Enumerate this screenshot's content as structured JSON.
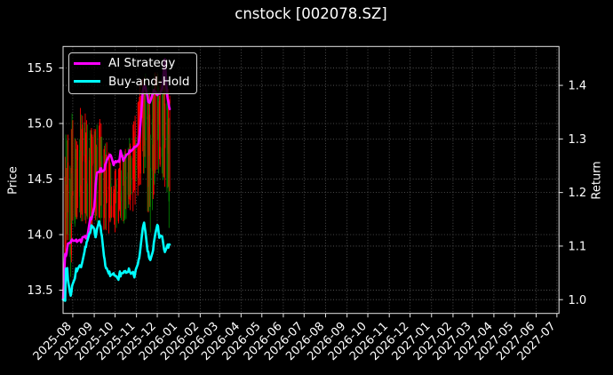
{
  "title": "cnstock [002078.SZ]",
  "colors": {
    "background": "#000000",
    "text": "#ffffff",
    "grid": "#9a9a9a",
    "spine": "#e6e6e6",
    "candle_up": "#ff0000",
    "candle_down": "#008000",
    "strategy": "#ff00ff",
    "buyhold": "#00ffff"
  },
  "legend": {
    "items": [
      {
        "label": "AI Strategy",
        "color": "#ff00ff"
      },
      {
        "label": "Buy-and-Hold",
        "color": "#00ffff"
      }
    ]
  },
  "axes": {
    "x": {
      "range": [
        "2025-07-18",
        "2027-07-04"
      ],
      "tick_labels": [
        "2025-08",
        "2025-09",
        "2025-10",
        "2025-11",
        "2025-12",
        "2026-01",
        "2026-02",
        "2026-03",
        "2026-04",
        "2026-05",
        "2026-06",
        "2026-07",
        "2026-08",
        "2026-09",
        "2026-10",
        "2026-11",
        "2026-12",
        "2027-01",
        "2027-02",
        "2027-03",
        "2027-04",
        "2027-05",
        "2027-06",
        "2027-07"
      ]
    },
    "y_left": {
      "label": "Price",
      "range": [
        13.291,
        15.693
      ],
      "ticks": [
        "13.5",
        "14.0",
        "14.5",
        "15.0",
        "15.5"
      ]
    },
    "y_right": {
      "label": "Return",
      "range": [
        0.9743,
        1.4726
      ],
      "ticks": [
        "1.0",
        "1.1",
        "1.2",
        "1.3",
        "1.4"
      ]
    },
    "grid": true
  },
  "chart_data": {
    "type": "candlestick+line",
    "title": "cnstock [002078.SZ]",
    "xlabel": "",
    "ylabel_left": "Price",
    "ylabel_right": "Return",
    "legend_position": "upper left",
    "grid": true,
    "dates": [
      "2025-07-18",
      "2025-07-21",
      "2025-07-22",
      "2025-07-23",
      "2025-07-24",
      "2025-07-25",
      "2025-07-28",
      "2025-07-29",
      "2025-07-30",
      "2025-07-31",
      "2025-08-01",
      "2025-08-04",
      "2025-08-05",
      "2025-08-06",
      "2025-08-07",
      "2025-08-08",
      "2025-08-11",
      "2025-08-12",
      "2025-08-13",
      "2025-08-14",
      "2025-08-15",
      "2025-08-18",
      "2025-08-19",
      "2025-08-20",
      "2025-08-21",
      "2025-08-22",
      "2025-08-25",
      "2025-08-26",
      "2025-08-27",
      "2025-08-28",
      "2025-08-29",
      "2025-09-01",
      "2025-09-02",
      "2025-09-03",
      "2025-09-04",
      "2025-09-05",
      "2025-09-08",
      "2025-09-09",
      "2025-09-10",
      "2025-09-11",
      "2025-09-12",
      "2025-09-15",
      "2025-09-16",
      "2025-09-17",
      "2025-09-18",
      "2025-09-19",
      "2025-09-22",
      "2025-09-23",
      "2025-09-24",
      "2025-09-25",
      "2025-09-26",
      "2025-09-29",
      "2025-09-30",
      "2025-10-01",
      "2025-10-02",
      "2025-10-03",
      "2025-10-06",
      "2025-10-07",
      "2025-10-08",
      "2025-10-09",
      "2025-10-10",
      "2025-10-13",
      "2025-10-14",
      "2025-10-15",
      "2025-10-16",
      "2025-10-17",
      "2025-10-20",
      "2025-10-21",
      "2025-10-22",
      "2025-10-23",
      "2025-10-24",
      "2025-10-27",
      "2025-10-28",
      "2025-10-29",
      "2025-10-30",
      "2025-10-31",
      "2025-11-03",
      "2025-11-04",
      "2025-11-05",
      "2025-11-06",
      "2025-11-07",
      "2025-11-10",
      "2025-11-11",
      "2025-11-12",
      "2025-11-13",
      "2025-11-14",
      "2025-11-17",
      "2025-11-18",
      "2025-11-19",
      "2025-11-20",
      "2025-11-21",
      "2025-11-24",
      "2025-11-25",
      "2025-11-26",
      "2025-11-27",
      "2025-11-28",
      "2025-12-01",
      "2025-12-02",
      "2025-12-03",
      "2025-12-04",
      "2025-12-05",
      "2025-12-08",
      "2025-12-09",
      "2025-12-10",
      "2025-12-11",
      "2025-12-12",
      "2025-12-15",
      "2025-12-16",
      "2025-12-17",
      "2025-12-18",
      "2025-12-19"
    ],
    "ohlc": {
      "open": [
        13.41,
        13.55,
        14.48,
        14.15,
        14.4,
        14.2,
        14.5,
        13.9,
        13.82,
        14.55,
        14.35,
        14.4,
        14.18,
        14.68,
        14.16,
        14.67,
        14.76,
        14.38,
        14.75,
        14.21,
        14.66,
        14.96,
        14.65,
        14.76,
        14.19,
        14.46,
        14.09,
        14.77,
        14.77,
        14.73,
        14.62,
        14.64,
        14.88,
        14.33,
        14.37,
        14.79,
        14.16,
        14.39,
        14.86,
        14.54,
        14.71,
        14.05,
        14.23,
        14.74,
        14.35,
        14.29,
        14.41,
        14.16,
        14.12,
        14.46,
        14.16,
        14.16,
        14.22,
        14.41,
        14.29,
        14.45,
        14.12,
        14.36,
        14.22,
        14.17,
        14.39,
        14.44,
        14.69,
        14.73,
        14.3,
        14.52,
        14.56,
        14.32,
        14.67,
        14.31,
        14.69,
        14.5,
        14.7,
        14.55,
        14.7,
        14.62,
        14.59,
        14.86,
        14.45,
        14.68,
        14.55,
        15.05,
        14.7,
        15.15,
        14.8,
        15.2,
        15.06,
        14.43,
        15.26,
        14.71,
        14.6,
        15.04,
        14.58,
        14.88,
        15.32,
        14.58,
        15.43,
        15.34,
        15.15,
        14.99,
        14.63,
        14.78,
        15.27,
        14.89,
        15.16,
        14.78,
        15.18,
        15.27,
        14.73,
        14.9,
        15.18
      ],
      "high": [
        13.6,
        14.7,
        14.9,
        14.6,
        14.85,
        14.9,
        14.62,
        14.1,
        14.95,
        15.09,
        15.03,
        14.87,
        14.86,
        14.77,
        14.84,
        14.81,
        14.86,
        15.14,
        15.08,
        14.95,
        15.07,
        15.01,
        15.09,
        14.92,
        15.03,
        14.99,
        14.78,
        14.94,
        14.91,
        14.96,
        14.9,
        14.95,
        14.93,
        14.95,
        14.81,
        14.99,
        14.98,
        15.04,
        14.88,
        15.0,
        14.88,
        14.77,
        14.8,
        14.82,
        14.72,
        14.83,
        14.74,
        14.7,
        14.65,
        14.64,
        14.43,
        14.44,
        14.41,
        14.58,
        14.59,
        14.5,
        14.59,
        14.6,
        14.69,
        14.68,
        14.58,
        14.72,
        14.72,
        14.75,
        14.77,
        14.73,
        14.78,
        14.77,
        14.87,
        14.82,
        14.71,
        14.99,
        15.02,
        14.85,
        15.07,
        14.88,
        15.19,
        15.2,
        15.24,
        15.35,
        15.25,
        15.4,
        15.3,
        15.35,
        15.42,
        15.45,
        15.35,
        15.24,
        15.33,
        15.28,
        14.9,
        15.36,
        15.3,
        15.28,
        15.45,
        15.46,
        15.45,
        15.45,
        15.32,
        15.25,
        15.39,
        15.26,
        15.37,
        15.44,
        15.58,
        15.4,
        15.28,
        15.3,
        15.31,
        15.05,
        15.25
      ],
      "low": [
        13.4,
        13.5,
        13.95,
        13.85,
        14.0,
        13.95,
        13.8,
        13.62,
        13.75,
        14.1,
        14.13,
        14.07,
        14.16,
        14.14,
        14.14,
        14.24,
        14.2,
        14.15,
        14.12,
        14.18,
        14.12,
        14.13,
        14.19,
        14.1,
        14.17,
        14.14,
        14.07,
        14.07,
        14.05,
        14.04,
        14.05,
        14.24,
        14.15,
        14.13,
        14.17,
        14.11,
        14.15,
        14.15,
        14.11,
        14.26,
        14.15,
        14.04,
        14.15,
        14.05,
        14.04,
        14.28,
        14.01,
        14.15,
        14.11,
        14.13,
        14.15,
        14.15,
        14.09,
        14.02,
        14.28,
        14.06,
        14.1,
        14.23,
        14.21,
        14.15,
        14.13,
        14.12,
        14.1,
        14.13,
        14.23,
        14.14,
        14.24,
        14.27,
        14.34,
        14.22,
        14.36,
        14.21,
        14.38,
        14.4,
        14.27,
        14.48,
        14.35,
        14.51,
        14.44,
        14.62,
        14.45,
        14.75,
        14.55,
        14.55,
        14.7,
        14.6,
        14.21,
        14.2,
        14.21,
        14.25,
        14.02,
        14.22,
        14.32,
        14.36,
        14.45,
        14.55,
        14.59,
        14.85,
        14.55,
        14.68,
        14.61,
        14.55,
        14.49,
        14.52,
        14.51,
        14.43,
        14.38,
        14.42,
        14.43,
        14.06,
        14.39
      ],
      "close": [
        13.52,
        14.52,
        14.2,
        14.45,
        14.15,
        14.65,
        13.95,
        13.78,
        14.6,
        14.35,
        14.39,
        14.1,
        14.59,
        14.4,
        14.59,
        14.8,
        14.34,
        14.7,
        14.45,
        14.44,
        14.99,
        14.71,
        14.72,
        14.9,
        14.48,
        14.16,
        14.67,
        14.7,
        14.26,
        14.94,
        14.88,
        14.9,
        14.38,
        14.39,
        14.8,
        14.45,
        14.4,
        15.01,
        14.61,
        14.66,
        14.55,
        14.27,
        14.63,
        14.24,
        14.6,
        14.4,
        14.43,
        14.33,
        14.34,
        14.26,
        14.26,
        14.37,
        14.4,
        14.57,
        14.47,
        14.43,
        14.39,
        14.49,
        14.31,
        14.34,
        14.3,
        14.7,
        14.68,
        14.15,
        14.48,
        14.5,
        14.36,
        14.75,
        14.36,
        14.8,
        14.45,
        14.69,
        14.93,
        14.7,
        15.02,
        14.58,
        14.89,
        15.15,
        14.63,
        14.95,
        15.1,
        15.28,
        15.2,
        14.7,
        15.25,
        14.85,
        15.04,
        15.21,
        14.97,
        15.08,
        14.25,
        14.57,
        14.81,
        15.24,
        14.48,
        15.41,
        15.43,
        15.15,
        14.86,
        15.2,
        14.79,
        14.7,
        14.93,
        15.21,
        14.81,
        15.18,
        15.12,
        14.76,
        15.04,
        14.3,
        15.22
      ]
    },
    "series": [
      {
        "name": "AI Strategy",
        "axis": "return",
        "values": [
          1.0,
          1.0855,
          1.0811,
          1.0858,
          1.0975,
          1.1046,
          1.1064,
          1.1068,
          1.1105,
          1.1124,
          1.11,
          1.11,
          1.1105,
          1.1121,
          1.1078,
          1.1092,
          1.1119,
          1.1121,
          1.107,
          1.1102,
          1.1167,
          1.1174,
          1.119,
          1.1144,
          1.1166,
          1.1169,
          1.1421,
          1.1493,
          1.1535,
          1.1502,
          1.1558,
          1.1725,
          1.1912,
          1.2141,
          1.2277,
          1.237,
          1.239,
          1.2382,
          1.245,
          1.2451,
          1.2388,
          1.2413,
          1.2438,
          1.2528,
          1.2548,
          1.2603,
          1.2669,
          1.2705,
          1.2706,
          1.2691,
          1.2649,
          1.2512,
          1.2545,
          1.2578,
          1.2586,
          1.2566,
          1.2596,
          1.2571,
          1.2668,
          1.2784,
          1.2729,
          1.2592,
          1.2636,
          1.2647,
          1.2661,
          1.2698,
          1.2725,
          1.2734,
          1.2785,
          1.2759,
          1.2772,
          1.281,
          1.283,
          1.2854,
          1.2853,
          1.2852,
          1.2897,
          1.2924,
          1.3019,
          1.3166,
          1.3324,
          1.389,
          1.3941,
          1.3978,
          1.4009,
          1.3968,
          1.3793,
          1.3692,
          1.3683,
          1.3675,
          1.3705,
          1.3828,
          1.3845,
          1.3913,
          1.3887,
          1.3885,
          1.3816,
          1.3847,
          1.3851,
          1.3846,
          1.3847,
          1.3935,
          1.4059,
          1.421,
          1.4406,
          1.449,
          1.3843,
          1.375,
          1.369,
          1.3609,
          1.3557
        ]
      },
      {
        "name": "Buy-and-Hold",
        "axis": "return",
        "values": [
          1.0,
          0.998,
          1.0578,
          1.0388,
          1.0589,
          1.0366,
          1.013,
          1.0074,
          1.014,
          1.0255,
          1.0296,
          1.0395,
          1.0488,
          1.0582,
          1.0528,
          1.0566,
          1.0641,
          1.0623,
          1.0606,
          1.066,
          1.0715,
          1.0898,
          1.0988,
          1.098,
          1.1074,
          1.1098,
          1.1236,
          1.1243,
          1.1297,
          1.1386,
          1.1373,
          1.1325,
          1.1209,
          1.1165,
          1.1238,
          1.1321,
          1.1464,
          1.1398,
          1.1372,
          1.125,
          1.1189,
          1.0817,
          1.075,
          1.0633,
          1.0588,
          1.0585,
          1.0487,
          1.0525,
          1.044,
          1.046,
          1.0464,
          1.0493,
          1.0452,
          1.045,
          1.0442,
          1.0436,
          1.0371,
          1.0456,
          1.0527,
          1.0434,
          1.0491,
          1.0498,
          1.0529,
          1.0517,
          1.0535,
          1.0501,
          1.0519,
          1.0582,
          1.0535,
          1.0506,
          1.0482,
          1.0518,
          1.0459,
          1.0416,
          1.0489,
          1.0561,
          1.0665,
          1.0739,
          1.078,
          1.0878,
          1.0994,
          1.1331,
          1.1392,
          1.1438,
          1.1343,
          1.1259,
          1.0903,
          1.0897,
          1.0793,
          1.0758,
          1.074,
          1.0872,
          1.0922,
          1.106,
          1.1138,
          1.1218,
          1.1394,
          1.1376,
          1.1255,
          1.1155,
          1.1199,
          1.1182,
          1.1105,
          1.1011,
          1.093,
          1.0888,
          1.0984,
          1.1027,
          1.097,
          1.1031,
          1.1028
        ]
      }
    ]
  }
}
